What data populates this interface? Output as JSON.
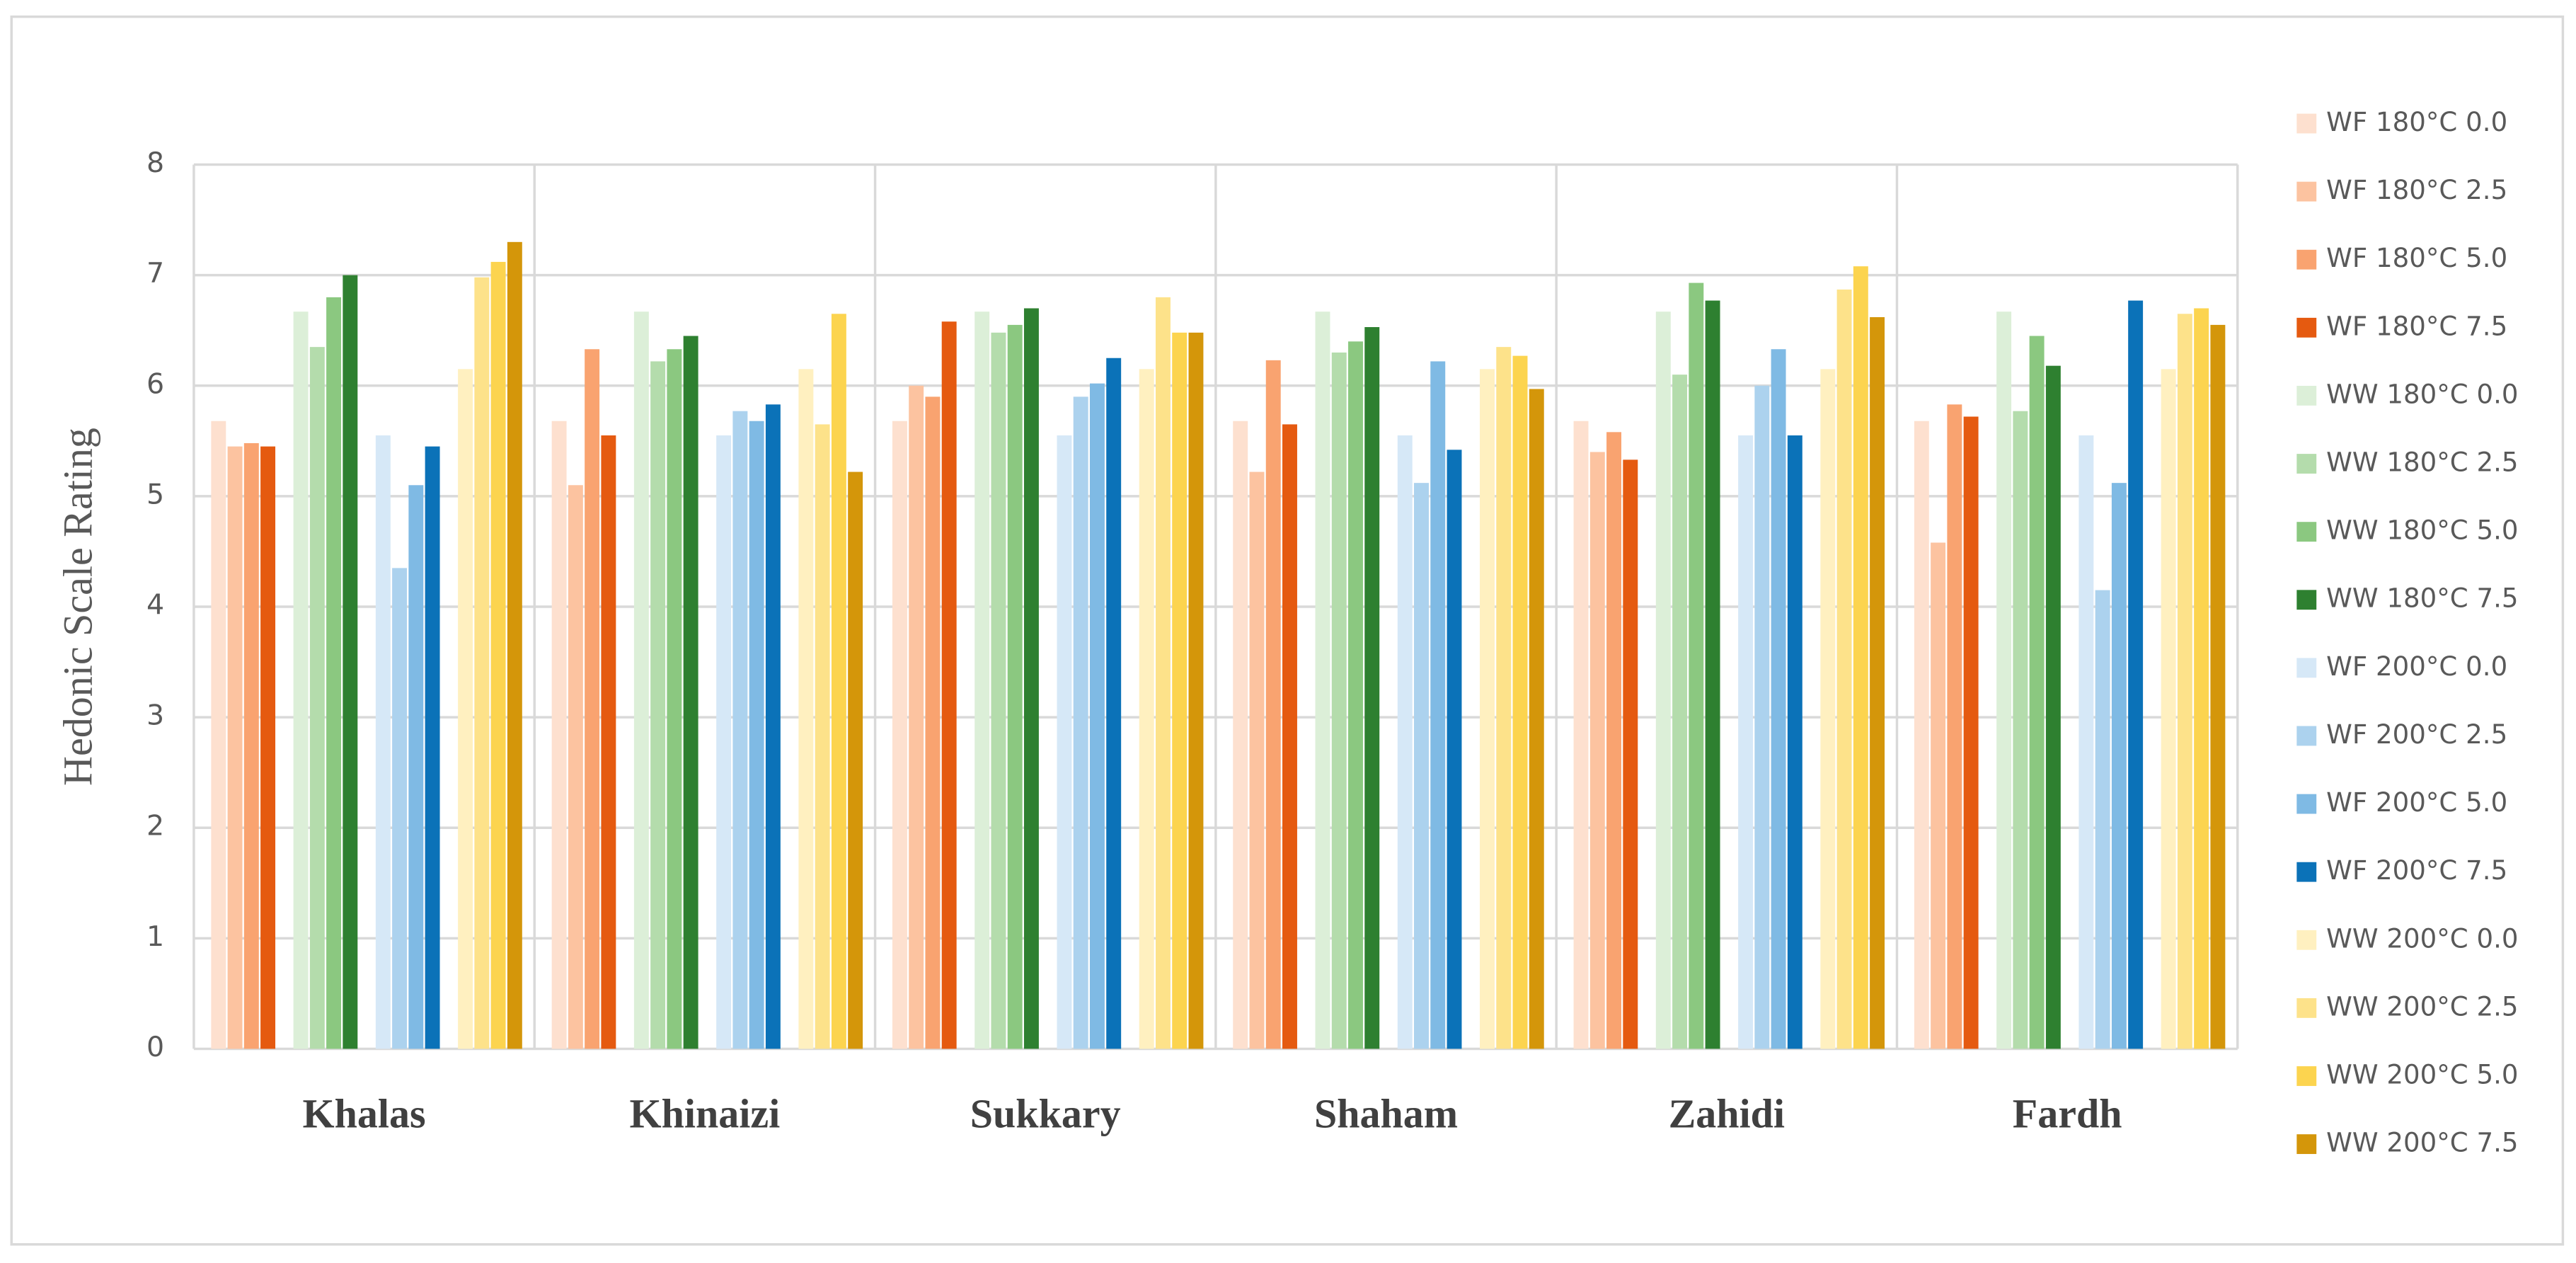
{
  "chart_data": {
    "type": "bar",
    "y_label": "Hedonic Scale Rating",
    "categories": [
      "Khalas",
      "Khinaizi",
      "Sukkary",
      "Shaham",
      "Zahidi",
      "Fardh"
    ],
    "ylim": [
      0,
      8
    ],
    "yticks": [
      0,
      1,
      2,
      3,
      4,
      5,
      6,
      7,
      8
    ],
    "grid": true,
    "legend": "right",
    "series": [
      {
        "name": "WF 180°C 0.0",
        "color": "#fde0cf",
        "values": [
          5.68,
          5.68,
          5.68,
          5.68,
          5.68,
          5.68
        ]
      },
      {
        "name": "WF 180°C 2.5",
        "color": "#fcc3a0",
        "values": [
          5.45,
          5.1,
          6.0,
          5.22,
          5.4,
          4.58
        ]
      },
      {
        "name": "WF 180°C 5.0",
        "color": "#f9a370",
        "values": [
          5.48,
          6.33,
          5.9,
          6.23,
          5.58,
          5.83
        ]
      },
      {
        "name": "WF 180°C 7.5",
        "color": "#e55a10",
        "values": [
          5.45,
          5.55,
          6.58,
          5.65,
          5.33,
          5.72
        ]
      },
      {
        "name": "WW 180°C 0.0",
        "color": "#dcefd8",
        "values": [
          6.67,
          6.67,
          6.67,
          6.67,
          6.67,
          6.67
        ]
      },
      {
        "name": "WW 180°C 2.5",
        "color": "#b4dcac",
        "values": [
          6.35,
          6.22,
          6.48,
          6.3,
          6.1,
          5.77
        ]
      },
      {
        "name": "WW 180°C 5.0",
        "color": "#8bc880",
        "values": [
          6.8,
          6.33,
          6.55,
          6.4,
          6.93,
          6.45
        ]
      },
      {
        "name": "WW 180°C 7.5",
        "color": "#2e8030",
        "values": [
          7.0,
          6.45,
          6.7,
          6.53,
          6.77,
          6.18
        ]
      },
      {
        "name": "WF 200°C 0.0",
        "color": "#d6e8f7",
        "values": [
          5.55,
          5.55,
          5.55,
          5.55,
          5.55,
          5.55
        ]
      },
      {
        "name": "WF 200°C 2.5",
        "color": "#acd2ee",
        "values": [
          4.35,
          5.77,
          5.9,
          5.12,
          6.0,
          4.15
        ]
      },
      {
        "name": "WF 200°C 5.0",
        "color": "#7fbae4",
        "values": [
          5.1,
          5.68,
          6.02,
          6.22,
          6.33,
          5.12
        ]
      },
      {
        "name": "WF 200°C 7.5",
        "color": "#0b72b8",
        "values": [
          5.45,
          5.83,
          6.25,
          5.42,
          5.55,
          6.77
        ]
      },
      {
        "name": "WW 200°C 0.0",
        "color": "#fff0c0",
        "values": [
          6.15,
          6.15,
          6.15,
          6.15,
          6.15,
          6.15
        ]
      },
      {
        "name": "WW 200°C 2.5",
        "color": "#fde28a",
        "values": [
          6.98,
          5.65,
          6.8,
          6.35,
          6.87,
          6.65
        ]
      },
      {
        "name": "WW 200°C 5.0",
        "color": "#fcd44f",
        "values": [
          7.12,
          6.65,
          6.48,
          6.27,
          7.08,
          6.7
        ]
      },
      {
        "name": "WW 200°C 7.5",
        "color": "#d4960a",
        "values": [
          7.3,
          5.22,
          6.48,
          5.97,
          6.62,
          6.55
        ]
      }
    ]
  }
}
